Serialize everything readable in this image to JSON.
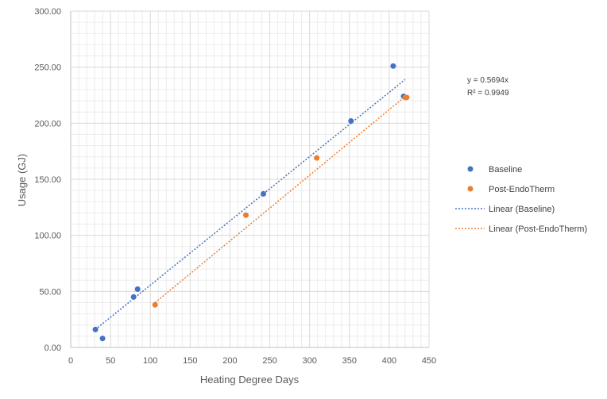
{
  "chart_data": {
    "type": "scatter",
    "xlabel": "Heating Degree Days",
    "ylabel": "Usage (GJ)",
    "xlim": [
      0,
      450
    ],
    "ylim": [
      0,
      300
    ],
    "x_ticks": [
      "0",
      "50",
      "100",
      "150",
      "200",
      "250",
      "300",
      "350",
      "400",
      "450"
    ],
    "y_ticks": [
      "0.00",
      "50.00",
      "100.00",
      "150.00",
      "200.00",
      "250.00",
      "300.00"
    ],
    "grid": true,
    "legend_position": "right",
    "series": [
      {
        "name": "Baseline",
        "color": "#4472C4",
        "points": [
          [
            31,
            16
          ],
          [
            40,
            8
          ],
          [
            79,
            45
          ],
          [
            84,
            52
          ],
          [
            242,
            137
          ],
          [
            352,
            202
          ],
          [
            405,
            251
          ],
          [
            418,
            224
          ]
        ],
        "trendline": {
          "name": "Linear (Baseline)",
          "x": [
            31,
            420
          ],
          "y": [
            16,
            239
          ]
        }
      },
      {
        "name": "Post-EndoTherm",
        "color": "#ED7D31",
        "points": [
          [
            106,
            38
          ],
          [
            220,
            118
          ],
          [
            309,
            169
          ],
          [
            420,
            223
          ],
          [
            422,
            223
          ]
        ],
        "trendline": {
          "name": "Linear (Post-EndoTherm)",
          "x": [
            106,
            422
          ],
          "y": [
            40,
            225
          ]
        }
      }
    ],
    "annotations": {
      "equation": "y = 0.5694x",
      "r_squared": "R² = 0.9949"
    }
  }
}
